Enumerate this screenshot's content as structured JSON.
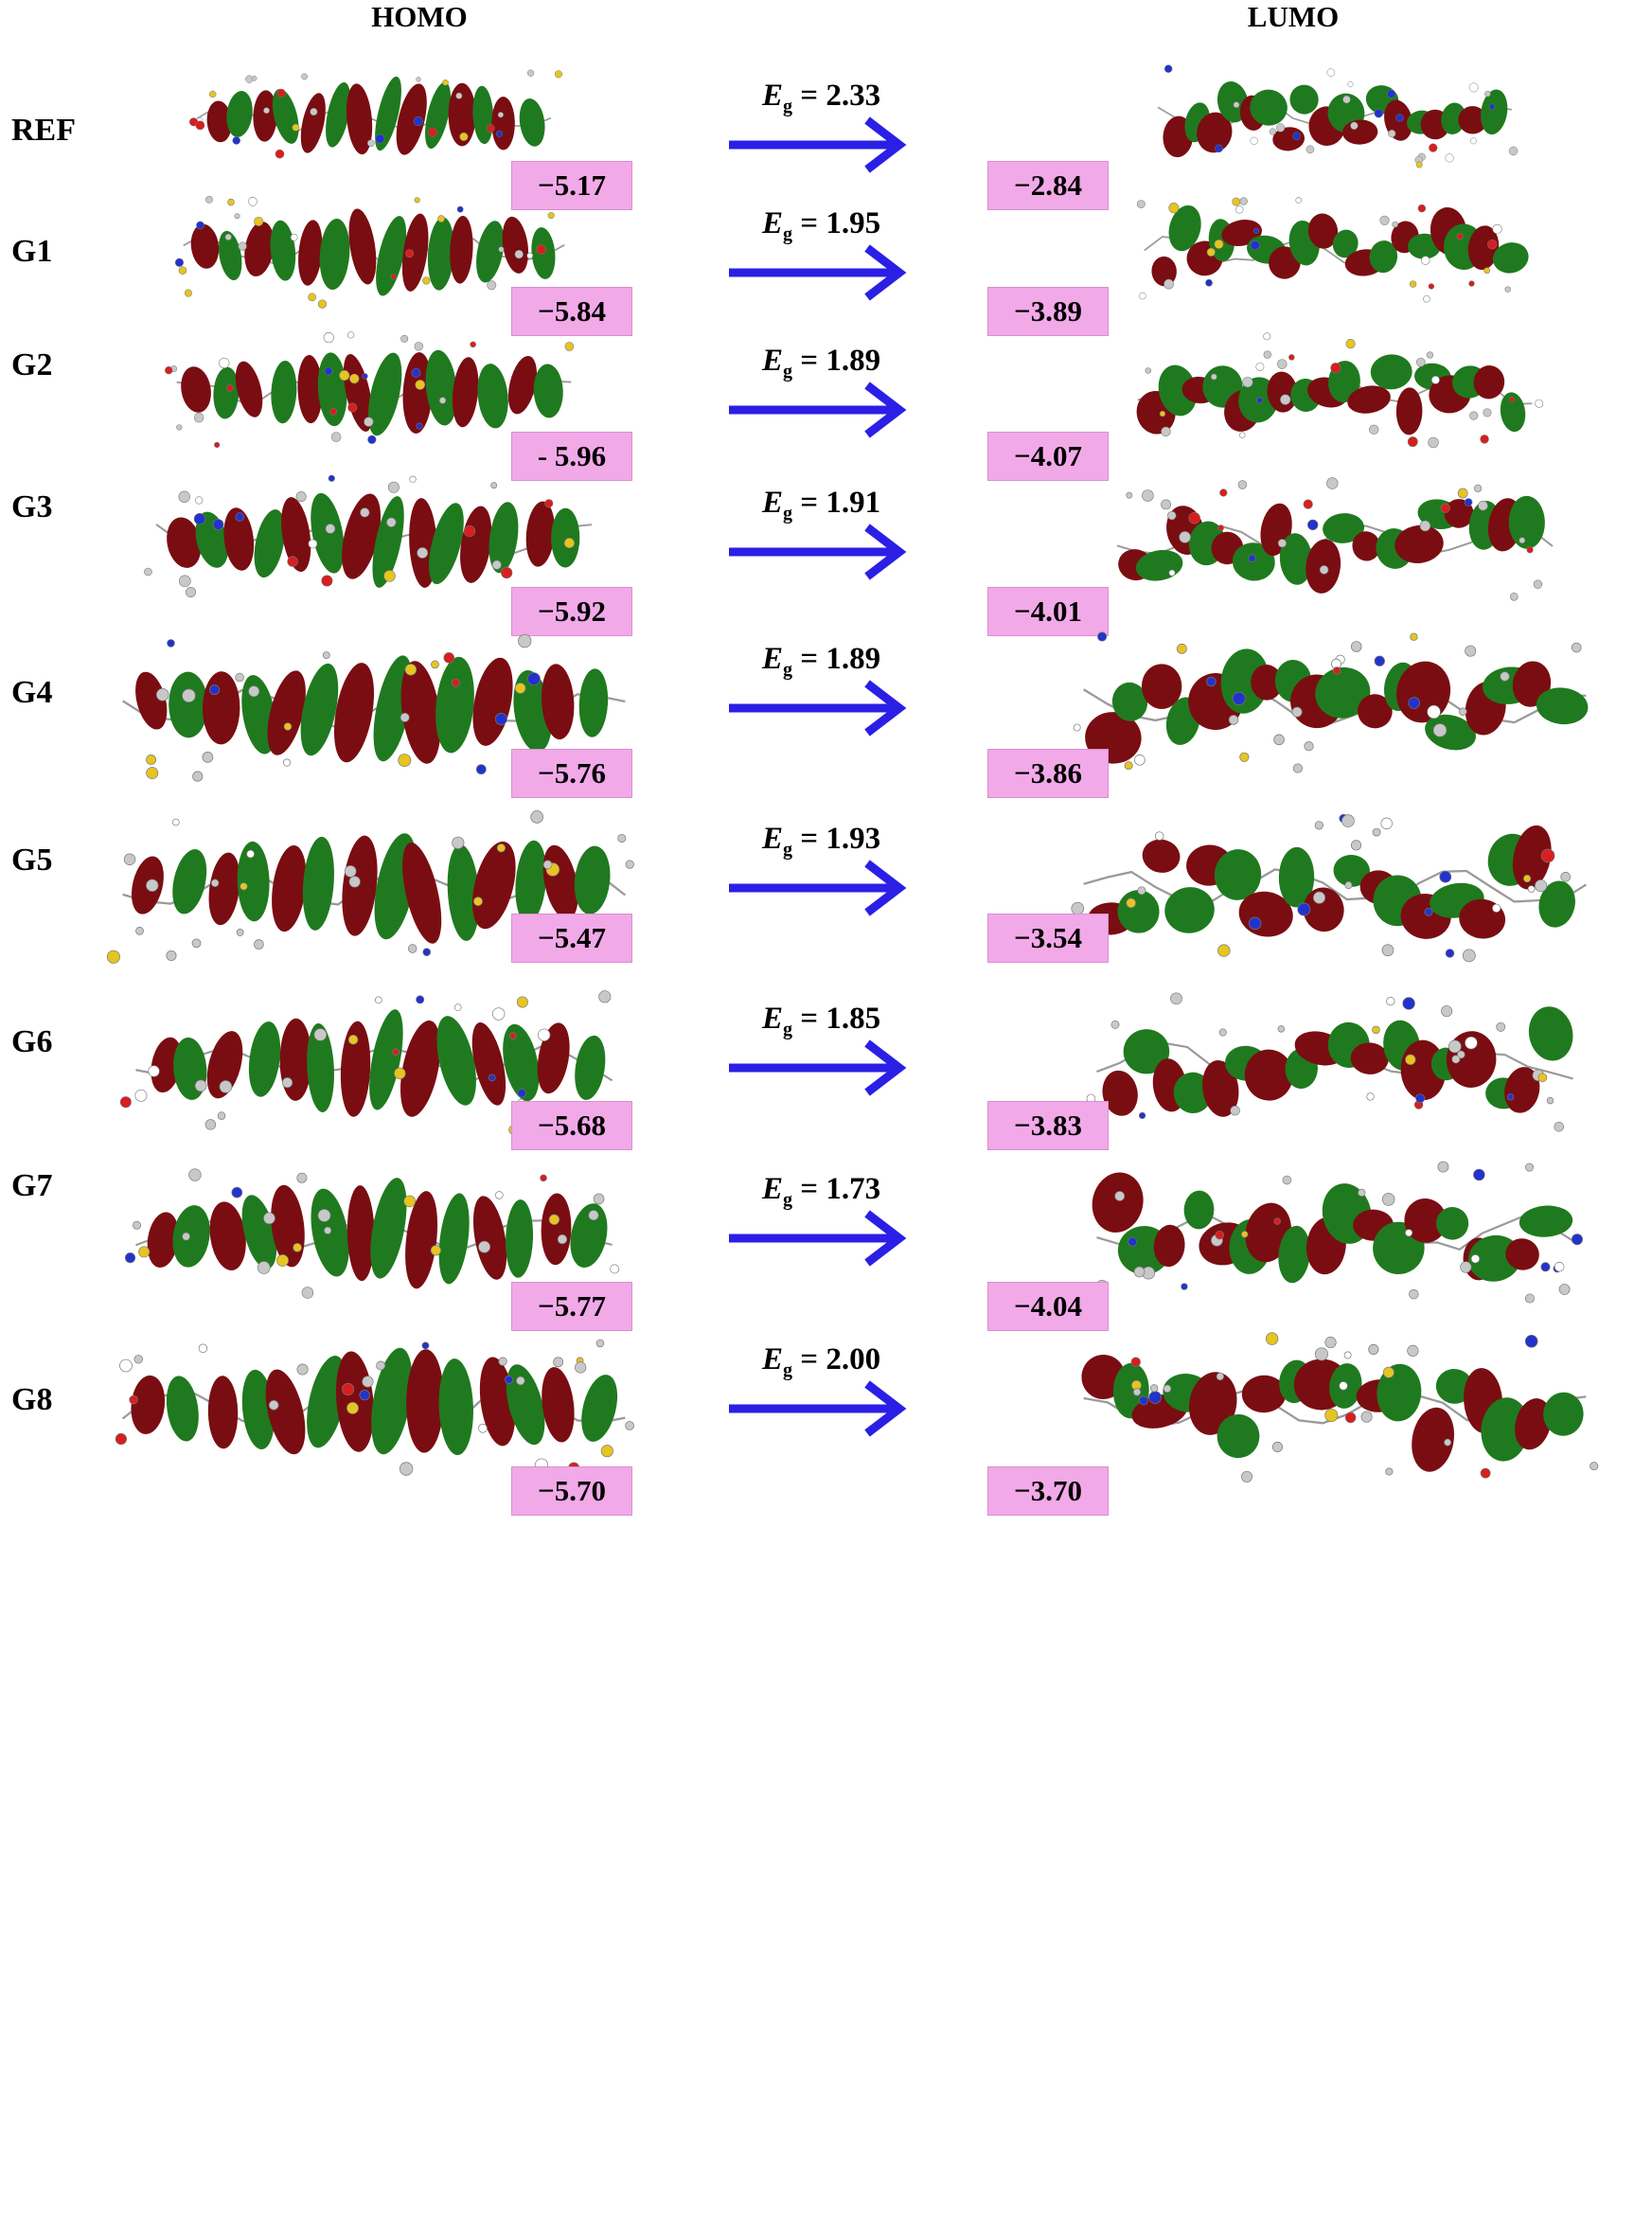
{
  "headers": {
    "homo": "HOMO",
    "lumo": "LUMO"
  },
  "eg_symbol": "E",
  "eg_subscript": "g",
  "colors": {
    "lobe_positive": "#7a0d12",
    "lobe_negative": "#1f7a1f",
    "energy_box": "#f2a9e8",
    "arrow": "#2b1fe6"
  },
  "rows": [
    {
      "label": "REF",
      "homo": "−5.17",
      "lumo": "−2.84",
      "eg": "= 2.33"
    },
    {
      "label": "G1",
      "homo": "−5.84",
      "lumo": "−3.89",
      "eg": "= 1.95"
    },
    {
      "label": "G2",
      "homo": "- 5.96",
      "lumo": "−4.07",
      "eg": "= 1.89"
    },
    {
      "label": "G3",
      "homo": "−5.92",
      "lumo": "−4.01",
      "eg": "= 1.91"
    },
    {
      "label": "G4",
      "homo": "−5.76",
      "lumo": "−3.86",
      "eg": "= 1.89"
    },
    {
      "label": "G5",
      "homo": "−5.47",
      "lumo": "−3.54",
      "eg": "= 1.93"
    },
    {
      "label": "G6",
      "homo": "−5.68",
      "lumo": "−3.83",
      "eg": "= 1.85"
    },
    {
      "label": "G7",
      "homo": "−5.77",
      "lumo": "−4.04",
      "eg": "= 1.73"
    },
    {
      "label": "G8",
      "homo": "−5.70",
      "lumo": "−3.70",
      "eg": "= 2.00"
    }
  ]
}
